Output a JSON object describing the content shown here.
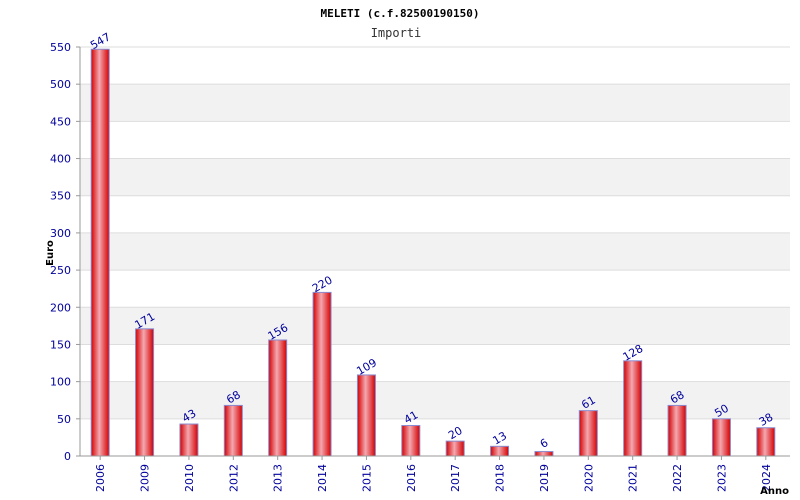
{
  "chart_data": {
    "type": "bar",
    "title": "MELETI (c.f.82500190150)",
    "subtitle": "Importi",
    "ylabel": "Euro",
    "xlabel": "Anno",
    "ylim": [
      0,
      550
    ],
    "yticks": [
      0,
      50,
      100,
      150,
      200,
      250,
      300,
      350,
      400,
      450,
      500,
      550
    ],
    "categories": [
      "2006",
      "2009",
      "2010",
      "2012",
      "2013",
      "2014",
      "2015",
      "2016",
      "2017",
      "2018",
      "2019",
      "2020",
      "2021",
      "2022",
      "2023",
      "2024"
    ],
    "values": [
      547,
      171,
      43,
      68,
      156,
      220,
      109,
      41,
      20,
      13,
      6,
      61,
      128,
      68,
      50,
      38
    ],
    "grid": true,
    "legend": "none"
  },
  "colors": {
    "bar_edge": "#d40000",
    "bar_highlight": "#f4a8b0",
    "bar_outline": "#8a8ad0",
    "band_alt": "#f2f2f2",
    "grid": "#dddddd",
    "text": "#00009c"
  }
}
